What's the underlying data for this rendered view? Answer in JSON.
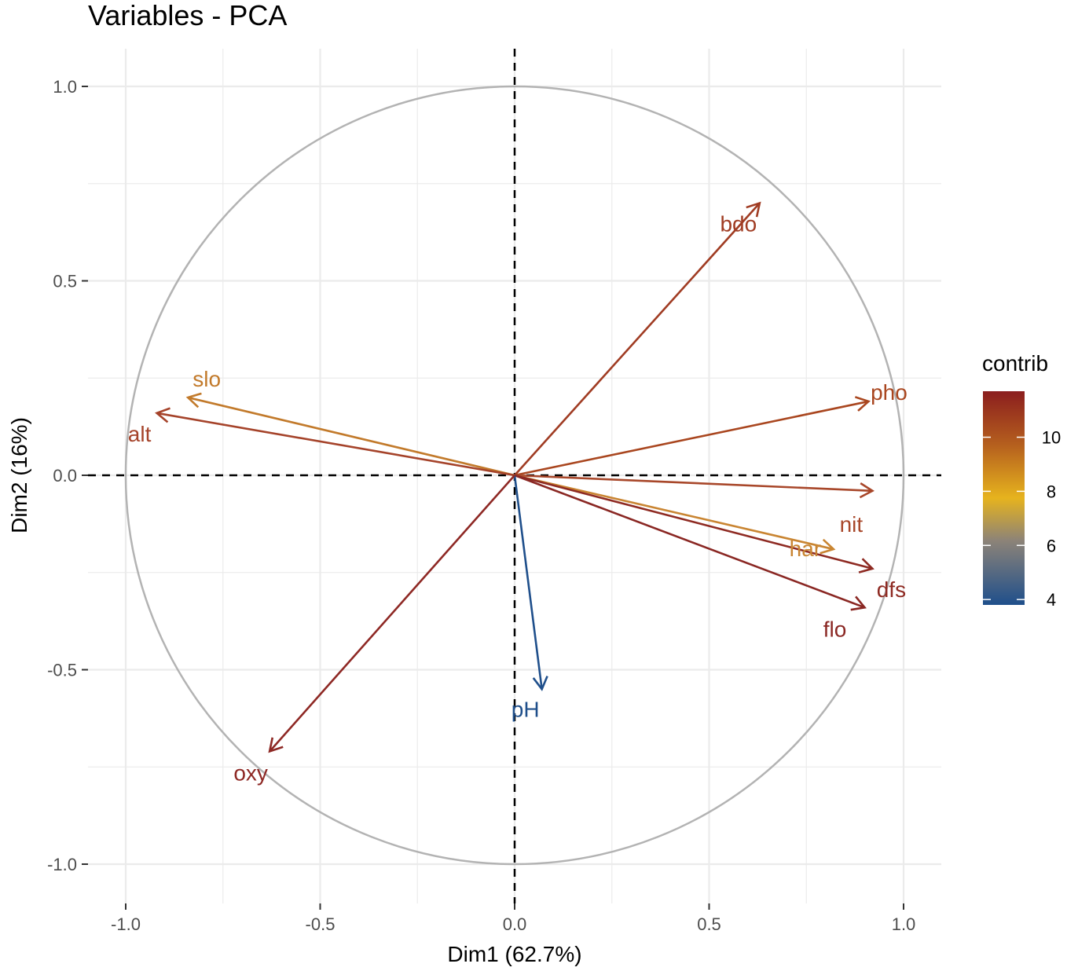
{
  "chart_data": {
    "type": "scatter",
    "subtype": "pca-variable-correlation-circle",
    "title": "Variables - PCA",
    "xlabel": "Dim1 (62.7%)",
    "ylabel": "Dim2 (16%)",
    "xlim": [
      -1.1,
      1.1
    ],
    "ylim": [
      -1.1,
      1.1
    ],
    "x_ticks": [
      -1.0,
      -0.5,
      0.0,
      0.5,
      1.0
    ],
    "y_ticks": [
      -1.0,
      -0.5,
      0.0,
      0.5,
      1.0
    ],
    "x_tick_labels": [
      "-1.0",
      "-0.5",
      "0.0",
      "0.5",
      "1.0"
    ],
    "y_tick_labels": [
      "1.0",
      "0.5",
      "0.0",
      "-0.5",
      "-1.0"
    ],
    "grid": true,
    "unit_circle": true,
    "legend": {
      "title": "contrib",
      "placement": "right",
      "ticks": [
        10,
        8,
        6,
        4
      ],
      "tick_labels": [
        "10",
        "8",
        "6",
        "4"
      ],
      "range": [
        3.8,
        11.7
      ]
    },
    "variables": [
      {
        "name": "bdo",
        "x": 0.63,
        "y": 0.7,
        "contrib": 10.8,
        "color": "#a03c23"
      },
      {
        "name": "pho",
        "x": 0.91,
        "y": 0.19,
        "contrib": 10.3,
        "color": "#a9461f"
      },
      {
        "name": "slo",
        "x": -0.84,
        "y": 0.2,
        "contrib": 8.8,
        "color": "#c27a2b"
      },
      {
        "name": "alt",
        "x": -0.92,
        "y": 0.16,
        "contrib": 10.5,
        "color": "#a5432a"
      },
      {
        "name": "nit",
        "x": 0.92,
        "y": -0.04,
        "contrib": 10.4,
        "color": "#a8472a"
      },
      {
        "name": "har",
        "x": 0.82,
        "y": -0.19,
        "contrib": 8.6,
        "color": "#c98532"
      },
      {
        "name": "dfs",
        "x": 0.92,
        "y": -0.24,
        "contrib": 11.4,
        "color": "#8e2a22"
      },
      {
        "name": "flo",
        "x": 0.9,
        "y": -0.34,
        "contrib": 11.5,
        "color": "#8a2723"
      },
      {
        "name": "pH",
        "x": 0.07,
        "y": -0.55,
        "contrib": 3.9,
        "color": "#1f4f8b"
      },
      {
        "name": "oxy",
        "x": -0.63,
        "y": -0.71,
        "contrib": 11.3,
        "color": "#8e2824"
      }
    ]
  },
  "colors": {
    "gradient_stops": [
      "#1f4f8b",
      "#8c8378",
      "#e6b31e",
      "#b55f1e",
      "#8b1e1e"
    ],
    "grid": "#ebebeb",
    "circle": "#b3b3b3"
  }
}
